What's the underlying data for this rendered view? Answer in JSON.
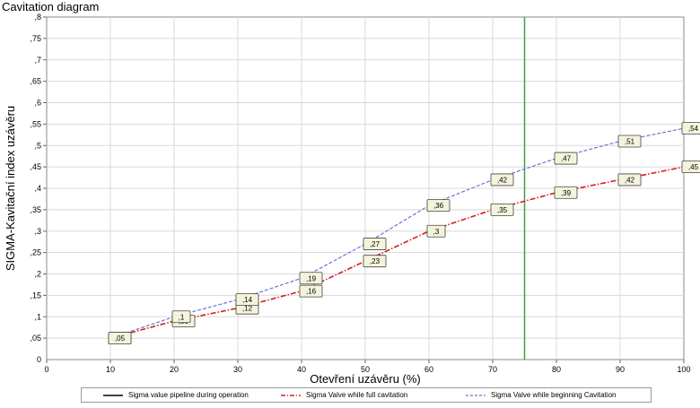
{
  "title": "Cavitation diagram",
  "chart_data": {
    "type": "line",
    "xlabel": "Otevření uzávěru (%)",
    "ylabel": "SIGMA-Kavitační index uzávěru",
    "xlim": [
      0,
      100
    ],
    "ylim": [
      0,
      0.8
    ],
    "x_ticks": [
      "0",
      "10",
      "20",
      "30",
      "40",
      "50",
      "60",
      "70",
      "80",
      "90",
      "100"
    ],
    "y_ticks": [
      ",05",
      ",1",
      ",15",
      ",2",
      ",25",
      ",3",
      ",35",
      ",4",
      ",45",
      ",5",
      ",55",
      ",6",
      ",65",
      ",7",
      ",75",
      ",8"
    ],
    "grid": true,
    "legend_position": "bottom",
    "vertical_line_x": 75,
    "series": [
      {
        "name": "Sigma value pipeline during operation",
        "color": "#000000",
        "style": "solid",
        "x": [],
        "values": []
      },
      {
        "name": "Sigma Valve while full cavitation",
        "color": "#d42020",
        "style": "dashdot",
        "x": [
          10,
          20,
          30,
          40,
          50,
          60,
          70,
          80,
          90,
          100
        ],
        "values": [
          0.05,
          0.09,
          0.12,
          0.16,
          0.23,
          0.3,
          0.35,
          0.39,
          0.42,
          0.45
        ],
        "labels": [
          ",05",
          ",09",
          ",12",
          ",16",
          ",23",
          ",3",
          ",35",
          ",39",
          ",42",
          ",45"
        ]
      },
      {
        "name": "Sigma Valve while beginning Cavitation",
        "color": "#7070d8",
        "style": "dashed",
        "x": [
          10,
          20,
          30,
          40,
          50,
          60,
          70,
          80,
          90,
          100
        ],
        "values": [
          0.05,
          0.1,
          0.14,
          0.19,
          0.27,
          0.36,
          0.42,
          0.47,
          0.51,
          0.54
        ],
        "labels": [
          ",05",
          ",1",
          ",14",
          ",19",
          ",27",
          ",36",
          ",42",
          ",47",
          ",51",
          ",54"
        ]
      }
    ]
  },
  "colors": {
    "grid": "#d8d8d8",
    "plot_bg": "#ffffff",
    "marker_line": "#40a040",
    "label_bg": "#f4f4dc"
  }
}
